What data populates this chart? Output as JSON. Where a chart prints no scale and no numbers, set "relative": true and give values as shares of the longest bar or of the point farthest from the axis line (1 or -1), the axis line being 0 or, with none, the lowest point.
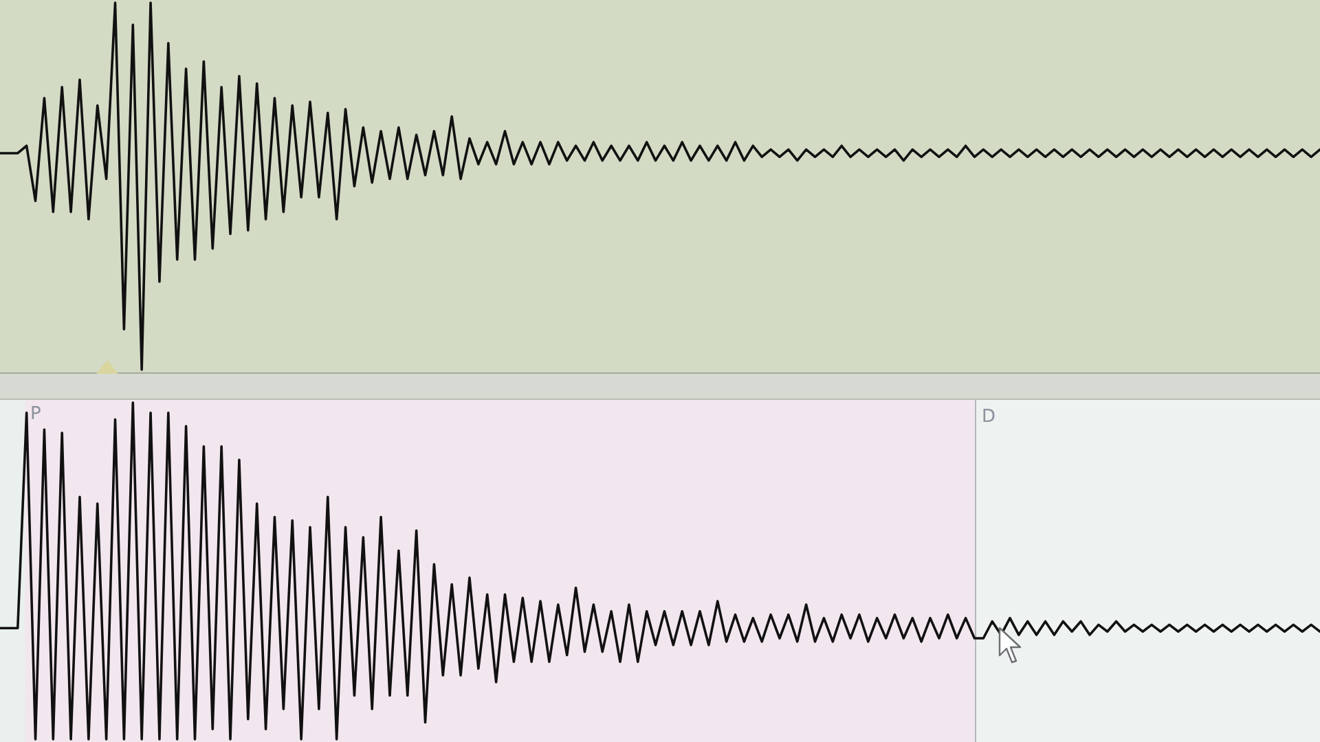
{
  "chart_data": [
    {
      "type": "line",
      "relative": true,
      "categories": [
        null,
        null,
        null,
        null,
        null,
        null,
        null,
        null,
        null,
        null,
        null,
        null,
        null,
        null,
        null,
        null,
        null,
        null,
        null,
        null,
        null,
        null,
        null,
        null,
        null,
        null,
        null,
        null,
        null,
        null,
        null,
        null,
        null,
        null,
        null,
        null,
        null,
        null,
        null,
        null,
        null,
        null,
        null,
        null,
        null,
        null,
        null,
        null,
        null,
        null,
        null,
        null,
        null,
        null,
        null,
        null,
        null,
        null,
        null,
        null,
        null,
        null,
        null,
        null,
        null,
        null,
        null,
        null,
        null,
        null,
        null,
        null,
        null,
        null,
        null,
        null,
        null,
        null,
        null,
        null,
        null,
        null,
        null,
        null,
        null,
        null,
        null,
        null,
        null,
        null,
        null,
        null,
        null,
        null,
        null,
        null,
        null,
        null,
        null,
        null,
        null,
        null,
        null,
        null,
        null,
        null,
        null,
        null,
        null,
        null,
        null,
        null,
        null,
        null,
        null,
        null,
        null,
        null,
        null,
        null,
        null,
        null,
        null,
        null,
        null,
        null,
        null,
        null,
        null,
        null,
        null,
        null,
        null,
        null,
        null,
        null,
        null,
        null,
        null,
        null,
        null,
        null,
        null,
        null,
        null,
        null,
        null,
        null,
        null,
        null
      ],
      "series": [
        {
          "color": "#111111",
          "values": [
            0.59,
            0.59,
            0.59,
            0.61,
            0.46,
            0.74,
            0.43,
            0.77,
            0.43,
            0.79,
            0.41,
            0.72,
            0.52,
            1,
            0.11,
            0.94,
            0,
            1,
            0.24,
            0.89,
            0.3,
            0.82,
            0.3,
            0.84,
            0.33,
            0.77,
            0.37,
            0.8,
            0.38,
            0.78,
            0.41,
            0.74,
            0.43,
            0.72,
            0.47,
            0.73,
            0.47,
            0.7,
            0.41,
            0.71,
            0.5,
            0.66,
            0.51,
            0.65,
            0.52,
            0.66,
            0.52,
            0.64,
            0.53,
            0.65,
            0.53,
            0.69,
            0.52,
            0.63,
            0.56,
            0.62,
            0.56,
            0.65,
            0.56,
            0.62,
            0.56,
            0.62,
            0.56,
            0.62,
            0.57,
            0.61,
            0.57,
            0.62,
            0.57,
            0.61,
            0.57,
            0.61,
            0.57,
            0.62,
            0.57,
            0.61,
            0.57,
            0.62,
            0.57,
            0.61,
            0.57,
            0.61,
            0.57,
            0.62,
            0.57,
            0.61,
            0.58,
            0.6,
            0.58,
            0.6,
            0.57,
            0.6,
            0.58,
            0.6,
            0.58,
            0.61,
            0.58,
            0.6,
            0.58,
            0.6,
            0.58,
            0.6,
            0.57,
            0.6,
            0.58,
            0.6,
            0.58,
            0.6,
            0.58,
            0.61,
            0.58,
            0.6,
            0.58,
            0.6,
            0.58,
            0.6,
            0.58,
            0.6,
            0.58,
            0.6,
            0.58,
            0.6,
            0.58,
            0.6,
            0.58,
            0.6,
            0.58,
            0.6,
            0.58,
            0.6,
            0.58,
            0.6,
            0.58,
            0.6,
            0.58,
            0.6,
            0.58,
            0.6,
            0.58,
            0.6,
            0.58,
            0.6,
            0.58,
            0.6,
            0.58,
            0.6,
            0.58,
            0.6,
            0.58,
            0.6
          ]
        }
      ]
    },
    {
      "type": "line",
      "relative": true,
      "categories": [
        null,
        null,
        null,
        null,
        null,
        null,
        null,
        null,
        null,
        null,
        null,
        null,
        null,
        null,
        null,
        null,
        null,
        null,
        null,
        null,
        null,
        null,
        null,
        null,
        null,
        null,
        null,
        null,
        null,
        null,
        null,
        null,
        null,
        null,
        null,
        null,
        null,
        null,
        null,
        null,
        null,
        null,
        null,
        null,
        null,
        null,
        null,
        null,
        null,
        null,
        null,
        null,
        null,
        null,
        null,
        null,
        null,
        null,
        null,
        null,
        null,
        null,
        null,
        null,
        null,
        null,
        null,
        null,
        null,
        null,
        null,
        null,
        null,
        null,
        null,
        null,
        null,
        null,
        null,
        null,
        null,
        null,
        null,
        null,
        null,
        null,
        null,
        null,
        null,
        null,
        null,
        null,
        null,
        null,
        null,
        null,
        null,
        null,
        null,
        null,
        null,
        null,
        null,
        null,
        null,
        null,
        null,
        null,
        null,
        null,
        null,
        null,
        null,
        null,
        null,
        null,
        null,
        null,
        null,
        null,
        null,
        null,
        null,
        null,
        null,
        null,
        null,
        null,
        null,
        null,
        null,
        null,
        null,
        null,
        null,
        null,
        null,
        null,
        null,
        null,
        null,
        null,
        null,
        null,
        null,
        null,
        null,
        null,
        null,
        null
      ],
      "series": [
        {
          "color": "#111111",
          "values": [
            0.33,
            0.33,
            0.33,
            0.97,
            0,
            0.92,
            0,
            0.91,
            0,
            0.72,
            0,
            0.7,
            0,
            0.95,
            0,
            1,
            0,
            0.97,
            0,
            0.97,
            0,
            0.93,
            0,
            0.87,
            0.03,
            0.87,
            0,
            0.83,
            0.06,
            0.7,
            0.03,
            0.66,
            0.09,
            0.65,
            0,
            0.63,
            0.09,
            0.72,
            0,
            0.63,
            0.13,
            0.6,
            0.09,
            0.66,
            0.13,
            0.56,
            0.13,
            0.62,
            0.05,
            0.52,
            0.19,
            0.46,
            0.19,
            0.48,
            0.21,
            0.43,
            0.17,
            0.43,
            0.23,
            0.42,
            0.23,
            0.41,
            0.23,
            0.4,
            0.25,
            0.45,
            0.26,
            0.4,
            0.26,
            0.38,
            0.23,
            0.4,
            0.23,
            0.38,
            0.28,
            0.38,
            0.28,
            0.38,
            0.28,
            0.38,
            0.28,
            0.41,
            0.29,
            0.37,
            0.29,
            0.36,
            0.29,
            0.37,
            0.3,
            0.37,
            0.29,
            0.4,
            0.29,
            0.36,
            0.29,
            0.37,
            0.3,
            0.37,
            0.29,
            0.36,
            0.3,
            0.37,
            0.3,
            0.36,
            0.29,
            0.36,
            0.3,
            0.37,
            0.3,
            0.36,
            0.3,
            0.3,
            0.35,
            0.31,
            0.36,
            0.31,
            0.35,
            0.31,
            0.35,
            0.31,
            0.35,
            0.32,
            0.35,
            0.31,
            0.34,
            0.32,
            0.35,
            0.32,
            0.34,
            0.32,
            0.34,
            0.32,
            0.34,
            0.32,
            0.34,
            0.32,
            0.34,
            0.32,
            0.34,
            0.32,
            0.34,
            0.32,
            0.34,
            0.32,
            0.34,
            0.32,
            0.34,
            0.32,
            0.34,
            0.32
          ]
        }
      ],
      "annotations": [
        "P",
        "D"
      ]
    }
  ]
}
